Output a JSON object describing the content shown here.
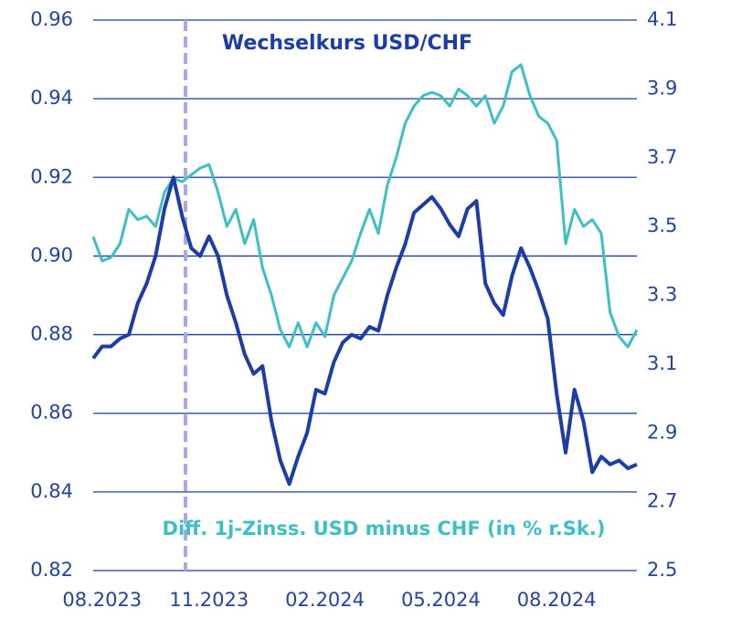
{
  "chart_data": {
    "type": "line",
    "categories": [
      null,
      "08.2023",
      null,
      null,
      null,
      null,
      null,
      null,
      null,
      null,
      null,
      null,
      null,
      "11.2023",
      null,
      null,
      null,
      null,
      null,
      null,
      null,
      null,
      null,
      null,
      null,
      null,
      "02.2024",
      null,
      null,
      null,
      null,
      null,
      null,
      null,
      null,
      null,
      null,
      null,
      null,
      "05.2024",
      null,
      null,
      null,
      null,
      null,
      null,
      null,
      null,
      null,
      null,
      null,
      null,
      "08.2024",
      null,
      null,
      null,
      null,
      null,
      null,
      null,
      null,
      null
    ],
    "series": [
      {
        "name": "Wechselkurs USD/CHF",
        "color": "#1c3ca8",
        "axis": "y",
        "values": [
          0.874,
          0.877,
          0.877,
          0.879,
          0.88,
          0.888,
          0.893,
          0.9,
          0.912,
          0.92,
          0.91,
          0.902,
          0.9,
          0.905,
          0.9,
          0.89,
          0.883,
          0.875,
          0.87,
          0.872,
          0.858,
          0.848,
          0.842,
          0.849,
          0.855,
          0.866,
          0.865,
          0.873,
          0.878,
          0.88,
          0.879,
          0.882,
          0.881,
          0.89,
          0.897,
          0.903,
          0.911,
          0.913,
          0.915,
          0.912,
          0.908,
          0.905,
          0.912,
          0.914,
          0.893,
          0.888,
          0.885,
          0.895,
          0.902,
          0.897,
          0.891,
          0.884,
          0.865,
          0.85,
          0.866,
          0.858,
          0.845,
          0.849,
          0.847,
          0.848,
          0.846,
          0.847
        ]
      },
      {
        "name": "Diff. 1j-Zinss. USD minus CHF (in % r.Sk.)",
        "color": "#3dbfc6",
        "axis": "y2",
        "values": [
          3.47,
          3.4,
          3.41,
          3.45,
          3.55,
          3.52,
          3.53,
          3.5,
          3.6,
          3.64,
          3.63,
          3.65,
          3.67,
          3.68,
          3.6,
          3.5,
          3.55,
          3.45,
          3.52,
          3.38,
          3.3,
          3.2,
          3.15,
          3.22,
          3.15,
          3.22,
          3.18,
          3.3,
          3.35,
          3.4,
          3.48,
          3.55,
          3.48,
          3.62,
          3.7,
          3.8,
          3.85,
          3.88,
          3.89,
          3.88,
          3.85,
          3.9,
          3.88,
          3.85,
          3.88,
          3.8,
          3.85,
          3.95,
          3.97,
          3.88,
          3.82,
          3.8,
          3.75,
          3.45,
          3.55,
          3.5,
          3.52,
          3.48,
          3.25,
          3.18,
          3.15,
          3.2
        ]
      }
    ],
    "ylim": [
      0.82,
      0.96
    ],
    "yticks": [
      0.96,
      0.94,
      0.92,
      {
        "value": 0.9,
        "label": "0.90"
      },
      0.88,
      0.86,
      0.84,
      0.82
    ],
    "y2lim": [
      2.5,
      4.1
    ],
    "y2ticks": [
      4.1,
      3.9,
      3.7,
      3.5,
      3.3,
      3.1,
      2.9,
      2.7,
      2.5
    ],
    "grid": true
  }
}
